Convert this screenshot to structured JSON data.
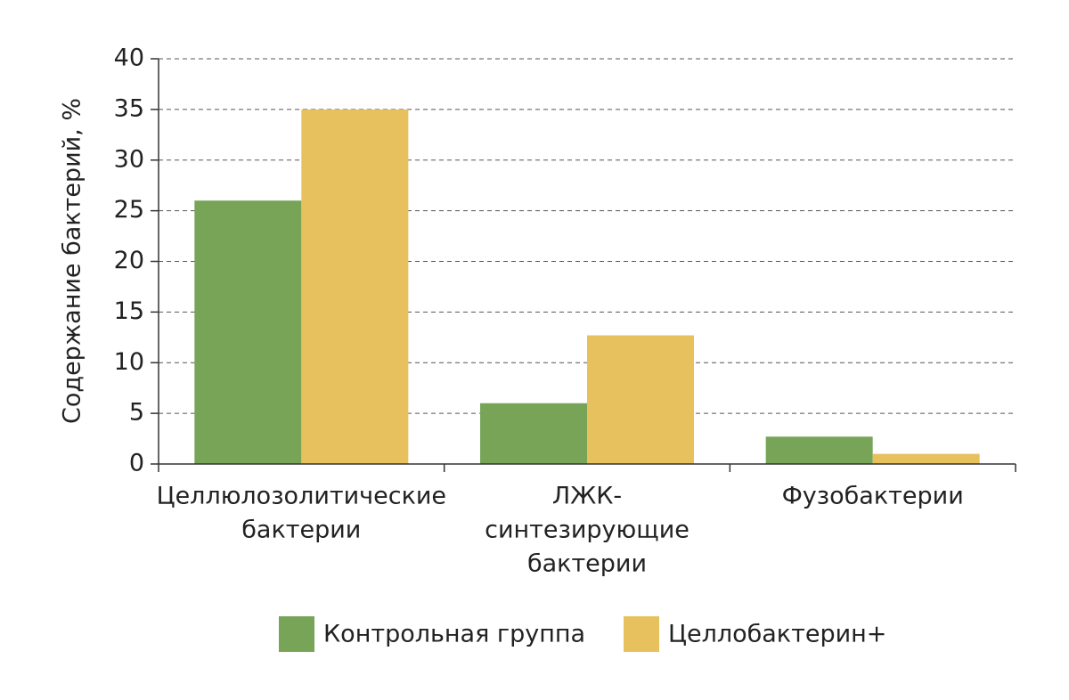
{
  "chart_data": {
    "type": "bar",
    "ylabel": "Содержание бактерий, %",
    "categories": [
      [
        "Целлюлозолитические",
        "бактерии"
      ],
      [
        "ЛЖК-",
        "синтезирующие",
        "бактерии"
      ],
      [
        "Фузобактерии"
      ]
    ],
    "series": [
      {
        "name": "Контрольная группа",
        "color": "#77a457",
        "values": [
          26,
          6,
          2.7
        ]
      },
      {
        "name": "Целлобактерин+",
        "color": "#e8c15f",
        "values": [
          35,
          12.7,
          1.0
        ]
      }
    ],
    "ylim": [
      0,
      40
    ],
    "yticks": [
      0,
      5,
      10,
      15,
      20,
      25,
      30,
      35,
      40
    ],
    "grid": true
  }
}
